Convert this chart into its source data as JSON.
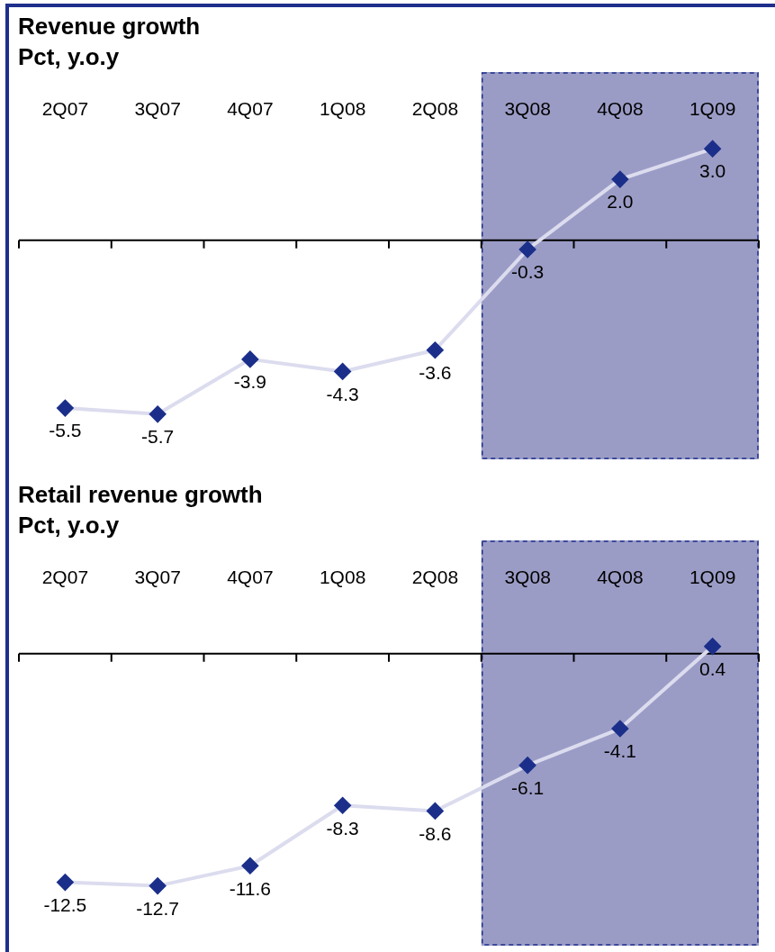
{
  "chart_data": [
    {
      "type": "line",
      "title": "Revenue growth",
      "subtitle": "Pct, y.o.y",
      "categories": [
        "2Q07",
        "3Q07",
        "4Q07",
        "1Q08",
        "2Q08",
        "3Q08",
        "4Q08",
        "1Q09"
      ],
      "series": [
        {
          "color": "#dcdcef",
          "values": [
            -5.5,
            -5.7,
            -3.9,
            -4.3,
            -3.6,
            -0.3,
            2.0,
            3.0
          ],
          "value_labels": [
            "-5.5",
            "-5.7",
            "-3.9",
            "-4.3",
            "-3.6",
            "-0.3",
            "2.0",
            "3.0"
          ]
        }
      ],
      "tick_labels": "x",
      "marker": "diamond",
      "grid": false,
      "legend": false,
      "bands": [
        {
          "axis": "x",
          "from": "3Q08",
          "to": "1Q09",
          "color": "#9b9cc6"
        }
      ]
    },
    {
      "type": "line",
      "title": "Retail revenue growth",
      "subtitle": "Pct, y.o.y",
      "categories": [
        "2Q07",
        "3Q07",
        "4Q07",
        "1Q08",
        "2Q08",
        "3Q08",
        "4Q08",
        "1Q09"
      ],
      "series": [
        {
          "color": "#dcdcef",
          "values": [
            -12.5,
            -12.7,
            -11.6,
            -8.3,
            -8.6,
            -6.1,
            -4.1,
            0.4
          ],
          "value_labels": [
            "-12.5",
            "-12.7",
            "-11.6",
            "-8.3",
            "-8.6",
            "-6.1",
            "-4.1",
            "0.4"
          ]
        }
      ],
      "tick_labels": "x",
      "marker": "diamond",
      "grid": false,
      "legend": false,
      "bands": [
        {
          "axis": "x",
          "from": "3Q08",
          "to": "1Q09",
          "color": "#9b9cc6"
        }
      ]
    }
  ]
}
